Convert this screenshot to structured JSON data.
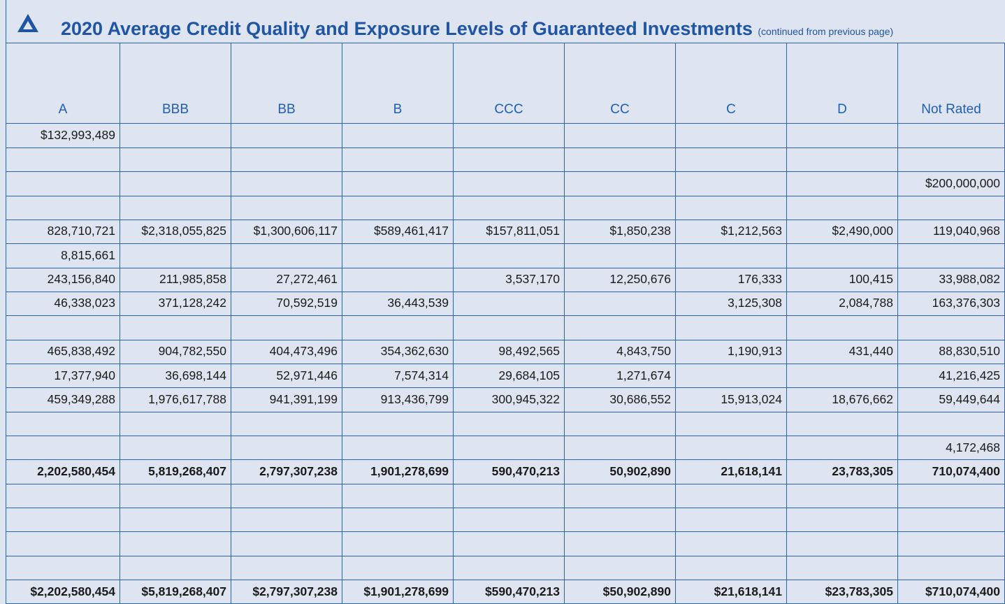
{
  "header": {
    "title": "2020 Average Credit Quality and Exposure Levels of Guaranteed Investments",
    "note": "(continued from previous page)"
  },
  "table": {
    "headers": [
      "A",
      "BBB",
      "BB",
      "B",
      "CCC",
      "CC",
      "C",
      "D",
      "Not Rated"
    ],
    "rows": [
      [
        "$132,993,489",
        null,
        null,
        null,
        null,
        null,
        null,
        null,
        null
      ],
      [
        null,
        null,
        null,
        null,
        null,
        null,
        null,
        null,
        null
      ],
      [
        null,
        null,
        null,
        null,
        null,
        null,
        null,
        null,
        "$200,000,000"
      ],
      [
        null,
        null,
        null,
        null,
        null,
        null,
        null,
        null,
        null
      ],
      [
        "828,710,721",
        "$2,318,055,825",
        "$1,300,606,117",
        "$589,461,417",
        "$157,811,051",
        "$1,850,238",
        "$1,212,563",
        "$2,490,000",
        "119,040,968"
      ],
      [
        "8,815,661",
        null,
        null,
        null,
        null,
        null,
        null,
        null,
        null
      ],
      [
        "243,156,840",
        "211,985,858",
        "27,272,461",
        null,
        "3,537,170",
        "12,250,676",
        "176,333",
        "100,415",
        "33,988,082"
      ],
      [
        "46,338,023",
        "371,128,242",
        "70,592,519",
        "36,443,539",
        null,
        null,
        "3,125,308",
        "2,084,788",
        "163,376,303"
      ],
      [
        null,
        null,
        null,
        null,
        null,
        null,
        null,
        null,
        null
      ],
      [
        "465,838,492",
        "904,782,550",
        "404,473,496",
        "354,362,630",
        "98,492,565",
        "4,843,750",
        "1,190,913",
        "431,440",
        "88,830,510"
      ],
      [
        "17,377,940",
        "36,698,144",
        "52,971,446",
        "7,574,314",
        "29,684,105",
        "1,271,674",
        null,
        null,
        "41,216,425"
      ],
      [
        "459,349,288",
        "1,976,617,788",
        "941,391,199",
        "913,436,799",
        "300,945,322",
        "30,686,552",
        "15,913,024",
        "18,676,662",
        "59,449,644"
      ],
      [
        null,
        null,
        null,
        null,
        null,
        null,
        null,
        null,
        null
      ],
      [
        null,
        null,
        null,
        null,
        null,
        null,
        null,
        null,
        "4,172,468"
      ],
      [
        "2,202,580,454",
        "5,819,268,407",
        "2,797,307,238",
        "1,901,278,699",
        "590,470,213",
        "50,902,890",
        "21,618,141",
        "23,783,305",
        "710,074,400"
      ],
      [
        null,
        null,
        null,
        null,
        null,
        null,
        null,
        null,
        null
      ],
      [
        null,
        null,
        null,
        null,
        null,
        null,
        null,
        null,
        null
      ],
      [
        null,
        null,
        null,
        null,
        null,
        null,
        null,
        null,
        null
      ],
      [
        null,
        null,
        null,
        null,
        null,
        null,
        null,
        null,
        null
      ],
      [
        "$2,202,580,454",
        "$5,819,268,407",
        "$2,797,307,238",
        "$1,901,278,699",
        "$590,470,213",
        "$50,902,890",
        "$21,618,141",
        "$23,783,305",
        "$710,074,400"
      ]
    ]
  }
}
